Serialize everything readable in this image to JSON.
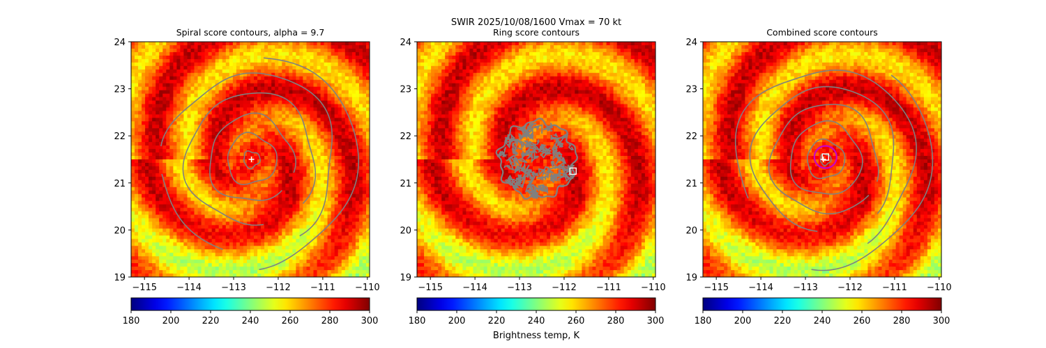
{
  "figure": {
    "suptitle_line1": "SWIR  2025/10/08/1600    Vmax = 70 kt",
    "colorbar_label": "Brightness temp, K"
  },
  "chart_data": [
    {
      "type": "heatmap",
      "title": "Spiral score contours, alpha =  9.7",
      "xlim": [
        -115.3,
        -109.95
      ],
      "ylim": [
        19,
        24
      ],
      "xticks": [
        -115,
        -114,
        -113,
        -112,
        -111,
        -110
      ],
      "xtick_labels": [
        "−115",
        "−114",
        "−113",
        "−112",
        "−111",
        "−110"
      ],
      "yticks": [
        19,
        20,
        21,
        22,
        23,
        24
      ],
      "ytick_labels": [
        "19",
        "20",
        "21",
        "22",
        "23",
        "24"
      ],
      "center": {
        "lon": -112.6,
        "lat": 21.5
      },
      "markers": [
        {
          "kind": "plus",
          "lon": -112.6,
          "lat": 21.5
        }
      ],
      "contour_style": "spiral",
      "colorbar": {
        "min": 180,
        "max": 300,
        "ticks": [
          180,
          200,
          220,
          240,
          260,
          280,
          300
        ],
        "colormap": "jet"
      }
    },
    {
      "type": "heatmap",
      "title": "Ring score contours",
      "xlim": [
        -115.3,
        -109.95
      ],
      "ylim": [
        19,
        24
      ],
      "xticks": [
        -115,
        -114,
        -113,
        -112,
        -111,
        -110
      ],
      "xtick_labels": [
        "−115",
        "−114",
        "−113",
        "−112",
        "−111",
        "−110"
      ],
      "yticks": [
        19,
        20,
        21,
        22,
        23,
        24
      ],
      "ytick_labels": [
        "19",
        "20",
        "21",
        "22",
        "23",
        "24"
      ],
      "center": {
        "lon": -112.6,
        "lat": 21.5
      },
      "markers": [
        {
          "kind": "square",
          "lon": -111.8,
          "lat": 21.25
        }
      ],
      "contour_style": "ring",
      "colorbar": {
        "min": 180,
        "max": 300,
        "ticks": [
          180,
          200,
          220,
          240,
          260,
          280,
          300
        ],
        "colormap": "jet"
      }
    },
    {
      "type": "heatmap",
      "title": "Combined score contours",
      "xlim": [
        -115.3,
        -109.95
      ],
      "ylim": [
        19,
        24
      ],
      "xticks": [
        -115,
        -114,
        -113,
        -112,
        -111,
        -110
      ],
      "xtick_labels": [
        "−115",
        "−114",
        "−113",
        "−112",
        "−111",
        "−110"
      ],
      "yticks": [
        19,
        20,
        21,
        22,
        23,
        24
      ],
      "ytick_labels": [
        "19",
        "20",
        "21",
        "22",
        "23",
        "24"
      ],
      "center": {
        "lon": -112.55,
        "lat": 21.5
      },
      "markers": [
        {
          "kind": "plus",
          "lon": -112.6,
          "lat": 21.5
        },
        {
          "kind": "square",
          "lon": -112.55,
          "lat": 21.55
        },
        {
          "kind": "circle",
          "lon": -112.55,
          "lat": 21.55,
          "radius_deg": 0.25
        }
      ],
      "contour_style": "combined",
      "colorbar": {
        "min": 180,
        "max": 300,
        "ticks": [
          180,
          200,
          220,
          240,
          260,
          280,
          300
        ],
        "colormap": "jet"
      }
    }
  ]
}
